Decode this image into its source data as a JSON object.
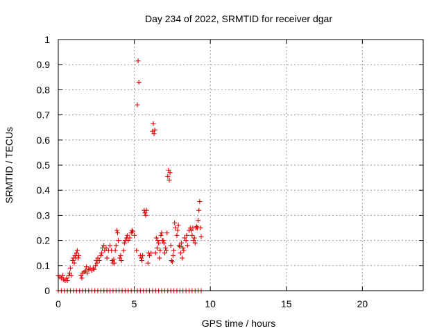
{
  "chart_data": {
    "type": "scatter",
    "title": "Day 234 of 2022, SRMTID for receiver dgar",
    "xlabel": "GPS time / hours",
    "ylabel": "SRMTID / TECUs",
    "xlim": [
      0,
      24
    ],
    "ylim": [
      0,
      1
    ],
    "xticks": [
      0,
      5,
      10,
      15,
      20
    ],
    "yticks": [
      0,
      0.1,
      0.2,
      0.3,
      0.4,
      0.5,
      0.6,
      0.7,
      0.8,
      0.9,
      1
    ],
    "grid": true,
    "marker": "plus",
    "color": "#e00000",
    "series": [
      {
        "points": [
          [
            0.0,
            0.06
          ],
          [
            0.1,
            0.055
          ],
          [
            0.2,
            0.05
          ],
          [
            0.3,
            0.06
          ],
          [
            0.35,
            0.045
          ],
          [
            0.45,
            0.04
          ],
          [
            0.55,
            0.05
          ],
          [
            0.6,
            0.04
          ],
          [
            0.7,
            0.06
          ],
          [
            0.75,
            0.07
          ],
          [
            0.8,
            0.09
          ],
          [
            0.85,
            0.06
          ],
          [
            0.95,
            0.12
          ],
          [
            1.0,
            0.13
          ],
          [
            1.05,
            0.11
          ],
          [
            1.1,
            0.14
          ],
          [
            1.15,
            0.13
          ],
          [
            1.2,
            0.15
          ],
          [
            1.25,
            0.16
          ],
          [
            1.3,
            0.13
          ],
          [
            1.35,
            0.14
          ],
          [
            1.5,
            0.06
          ],
          [
            1.55,
            0.05
          ],
          [
            1.6,
            0.07
          ],
          [
            1.7,
            0.075
          ],
          [
            1.8,
            0.08
          ],
          [
            1.85,
            0.095
          ],
          [
            1.9,
            0.07
          ],
          [
            2.0,
            0.085
          ],
          [
            2.1,
            0.09
          ],
          [
            2.2,
            0.08
          ],
          [
            2.3,
            0.09
          ],
          [
            2.35,
            0.085
          ],
          [
            2.45,
            0.1
          ],
          [
            2.5,
            0.12
          ],
          [
            2.55,
            0.11
          ],
          [
            2.6,
            0.13
          ],
          [
            2.7,
            0.12
          ],
          [
            2.8,
            0.14
          ],
          [
            2.85,
            0.15
          ],
          [
            2.9,
            0.17
          ],
          [
            3.0,
            0.18
          ],
          [
            3.05,
            0.16
          ],
          [
            3.15,
            0.17
          ],
          [
            3.2,
            0.13
          ],
          [
            3.3,
            0.16
          ],
          [
            3.4,
            0.18
          ],
          [
            3.5,
            0.16
          ],
          [
            3.55,
            0.12
          ],
          [
            3.6,
            0.11
          ],
          [
            3.65,
            0.125
          ],
          [
            3.7,
            0.11
          ],
          [
            3.75,
            0.16
          ],
          [
            3.8,
            0.18
          ],
          [
            3.85,
            0.24
          ],
          [
            3.9,
            0.23
          ],
          [
            3.95,
            0.2
          ],
          [
            4.05,
            0.13
          ],
          [
            4.1,
            0.14
          ],
          [
            4.15,
            0.12
          ],
          [
            4.3,
            0.16
          ],
          [
            4.35,
            0.19
          ],
          [
            4.4,
            0.2
          ],
          [
            4.5,
            0.21
          ],
          [
            4.55,
            0.22
          ],
          [
            4.6,
            0.2
          ],
          [
            4.7,
            0.21
          ],
          [
            4.8,
            0.23
          ],
          [
            4.85,
            0.24
          ],
          [
            4.9,
            0.235
          ],
          [
            5.0,
            0.22
          ],
          [
            5.15,
            0.16
          ],
          [
            5.2,
            0.74
          ],
          [
            5.25,
            0.915
          ],
          [
            5.3,
            0.83
          ],
          [
            5.4,
            0.14
          ],
          [
            5.45,
            0.13
          ],
          [
            5.5,
            0.12
          ],
          [
            5.55,
            0.14
          ],
          [
            5.65,
            0.32
          ],
          [
            5.7,
            0.31
          ],
          [
            5.75,
            0.3
          ],
          [
            5.8,
            0.32
          ],
          [
            5.9,
            0.11
          ],
          [
            5.95,
            0.15
          ],
          [
            6.0,
            0.14
          ],
          [
            6.1,
            0.15
          ],
          [
            6.2,
            0.635
          ],
          [
            6.25,
            0.665
          ],
          [
            6.3,
            0.625
          ],
          [
            6.35,
            0.64
          ],
          [
            6.4,
            0.15
          ],
          [
            6.45,
            0.21
          ],
          [
            6.5,
            0.17
          ],
          [
            6.55,
            0.2
          ],
          [
            6.6,
            0.19
          ],
          [
            6.65,
            0.13
          ],
          [
            6.7,
            0.16
          ],
          [
            6.75,
            0.22
          ],
          [
            6.8,
            0.23
          ],
          [
            6.85,
            0.2
          ],
          [
            6.9,
            0.2
          ],
          [
            6.95,
            0.19
          ],
          [
            7.0,
            0.15
          ],
          [
            7.05,
            0.17
          ],
          [
            7.1,
            0.16
          ],
          [
            7.15,
            0.23
          ],
          [
            7.2,
            0.455
          ],
          [
            7.25,
            0.48
          ],
          [
            7.3,
            0.44
          ],
          [
            7.35,
            0.47
          ],
          [
            7.4,
            0.18
          ],
          [
            7.45,
            0.12
          ],
          [
            7.5,
            0.115
          ],
          [
            7.55,
            0.14
          ],
          [
            7.6,
            0.16
          ],
          [
            7.65,
            0.27
          ],
          [
            7.7,
            0.25
          ],
          [
            7.8,
            0.22
          ],
          [
            7.85,
            0.24
          ],
          [
            7.9,
            0.26
          ],
          [
            7.95,
            0.18
          ],
          [
            8.0,
            0.175
          ],
          [
            8.05,
            0.15
          ],
          [
            8.1,
            0.19
          ],
          [
            8.15,
            0.13
          ],
          [
            8.2,
            0.17
          ],
          [
            8.25,
            0.16
          ],
          [
            8.3,
            0.21
          ],
          [
            8.4,
            0.2
          ],
          [
            8.45,
            0.22
          ],
          [
            8.5,
            0.18
          ],
          [
            8.6,
            0.24
          ],
          [
            8.7,
            0.25
          ],
          [
            8.75,
            0.24
          ],
          [
            8.8,
            0.22
          ],
          [
            8.85,
            0.25
          ],
          [
            8.9,
            0.2
          ],
          [
            8.95,
            0.21
          ],
          [
            9.0,
            0.19
          ],
          [
            9.05,
            0.25
          ],
          [
            9.1,
            0.255
          ],
          [
            9.15,
            0.25
          ],
          [
            9.2,
            0.28
          ],
          [
            9.25,
            0.32
          ],
          [
            9.3,
            0.355
          ],
          [
            9.35,
            0.25
          ],
          [
            9.4,
            0.215
          ],
          [
            0.0,
            0
          ],
          [
            0.2,
            0
          ],
          [
            0.4,
            0
          ],
          [
            0.6,
            0
          ],
          [
            0.8,
            0
          ],
          [
            1.0,
            0
          ],
          [
            1.2,
            0
          ],
          [
            1.4,
            0
          ],
          [
            1.6,
            0
          ],
          [
            1.8,
            0
          ],
          [
            2.0,
            0
          ],
          [
            2.2,
            0
          ],
          [
            2.4,
            0
          ],
          [
            2.6,
            0
          ],
          [
            2.8,
            0
          ],
          [
            3.0,
            0
          ],
          [
            3.2,
            0
          ],
          [
            3.4,
            0
          ],
          [
            3.6,
            0
          ],
          [
            3.8,
            0
          ],
          [
            4.0,
            0
          ],
          [
            4.2,
            0
          ],
          [
            4.4,
            0
          ],
          [
            4.6,
            0
          ],
          [
            4.8,
            0
          ],
          [
            5.0,
            0
          ],
          [
            5.2,
            0
          ],
          [
            5.4,
            0
          ],
          [
            5.6,
            0
          ],
          [
            5.8,
            0
          ],
          [
            6.0,
            0
          ],
          [
            6.2,
            0
          ],
          [
            6.4,
            0
          ],
          [
            6.6,
            0
          ],
          [
            6.8,
            0
          ],
          [
            7.0,
            0
          ],
          [
            7.2,
            0
          ],
          [
            7.4,
            0
          ],
          [
            7.6,
            0
          ],
          [
            7.8,
            0
          ],
          [
            8.0,
            0
          ],
          [
            8.2,
            0
          ],
          [
            8.4,
            0
          ],
          [
            8.6,
            0
          ],
          [
            8.8,
            0
          ],
          [
            9.0,
            0
          ],
          [
            9.2,
            0
          ],
          [
            9.4,
            0
          ]
        ]
      }
    ]
  }
}
